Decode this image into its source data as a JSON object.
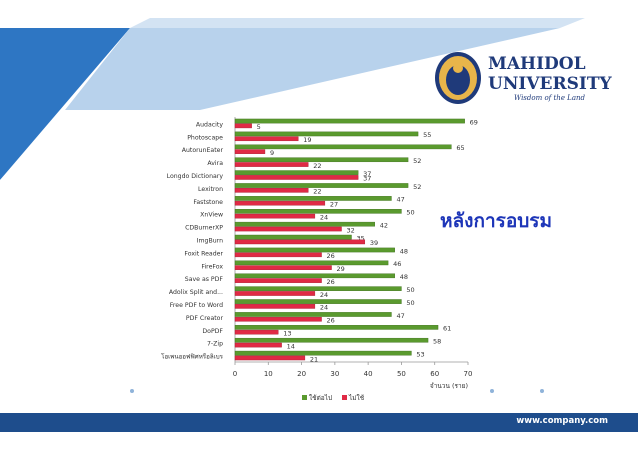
{
  "brand": {
    "name_line1": "MAHIDOL",
    "name_line2": "UNIVERSITY",
    "tagline": "Wisdom of the Land"
  },
  "heading": "หลังการอบรม",
  "footer": {
    "url": "www.company.com"
  },
  "colors": {
    "series_use": "#5a9a2e",
    "series_not_use": "#e02a45",
    "footer": "#1e4d8c",
    "accent_blue": "#2e76c3"
  },
  "chart_data": {
    "type": "bar",
    "orientation": "horizontal",
    "categories": [
      "Audacity",
      "Photoscape",
      "AutorunEater",
      "Avira",
      "Longdo Dictionary",
      "Lexitron",
      "Faststone",
      "XnView",
      "CDBurnerXP",
      "ImgBurn",
      "Foxit Reader",
      "FireFox",
      "Save as PDF",
      "Adolix Split and...",
      "Free PDF to Word",
      "PDF Creator",
      "DoPDF",
      "7-Zip",
      "โอเพนออฟฟิศหรือลิเบร"
    ],
    "series": [
      {
        "name": "ใช้ต่อไป",
        "values": [
          69,
          55,
          65,
          52,
          37,
          52,
          47,
          50,
          42,
          35,
          48,
          46,
          48,
          50,
          50,
          47,
          61,
          58,
          53
        ]
      },
      {
        "name": "ไม่ใช้",
        "values": [
          5,
          19,
          9,
          22,
          37,
          22,
          27,
          24,
          32,
          39,
          26,
          29,
          26,
          24,
          24,
          26,
          13,
          14,
          21
        ]
      }
    ],
    "x_ticks": [
      "0",
      "10",
      "20",
      "30",
      "40",
      "50",
      "60",
      "70"
    ],
    "xlim": [
      0,
      70
    ],
    "xlabel": "จำนวน (ราย)",
    "legend_position": "bottom",
    "grid": false
  }
}
